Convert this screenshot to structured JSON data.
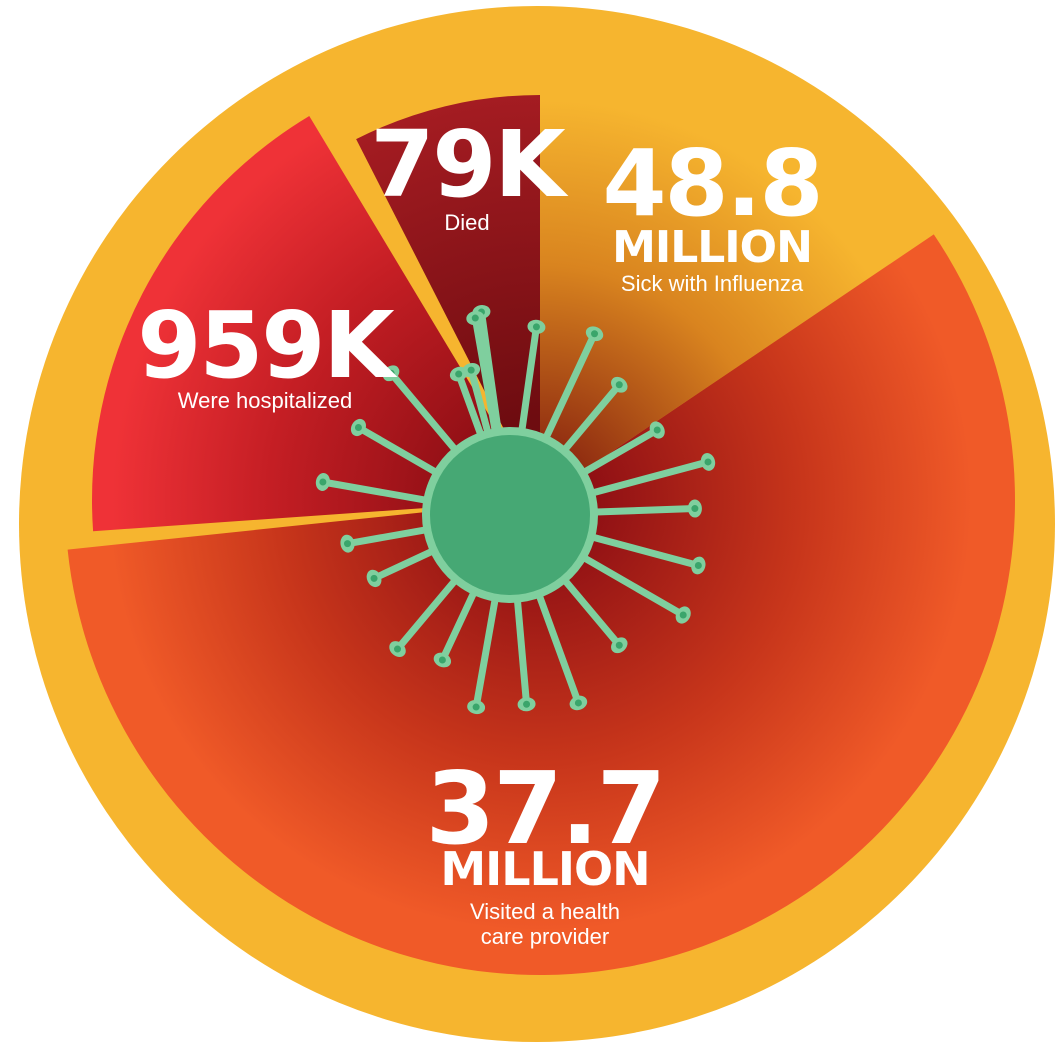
{
  "segments": [
    {
      "value": "79K",
      "label": "Died"
    },
    {
      "value": "48.8",
      "unit": "MILLION",
      "label": "Sick with Influenza"
    },
    {
      "value": "959K",
      "label": "Were hospitalized"
    },
    {
      "value": "37.7",
      "unit": "MILLION",
      "label_lines": [
        "Visited a health",
        "care provider"
      ]
    }
  ]
}
